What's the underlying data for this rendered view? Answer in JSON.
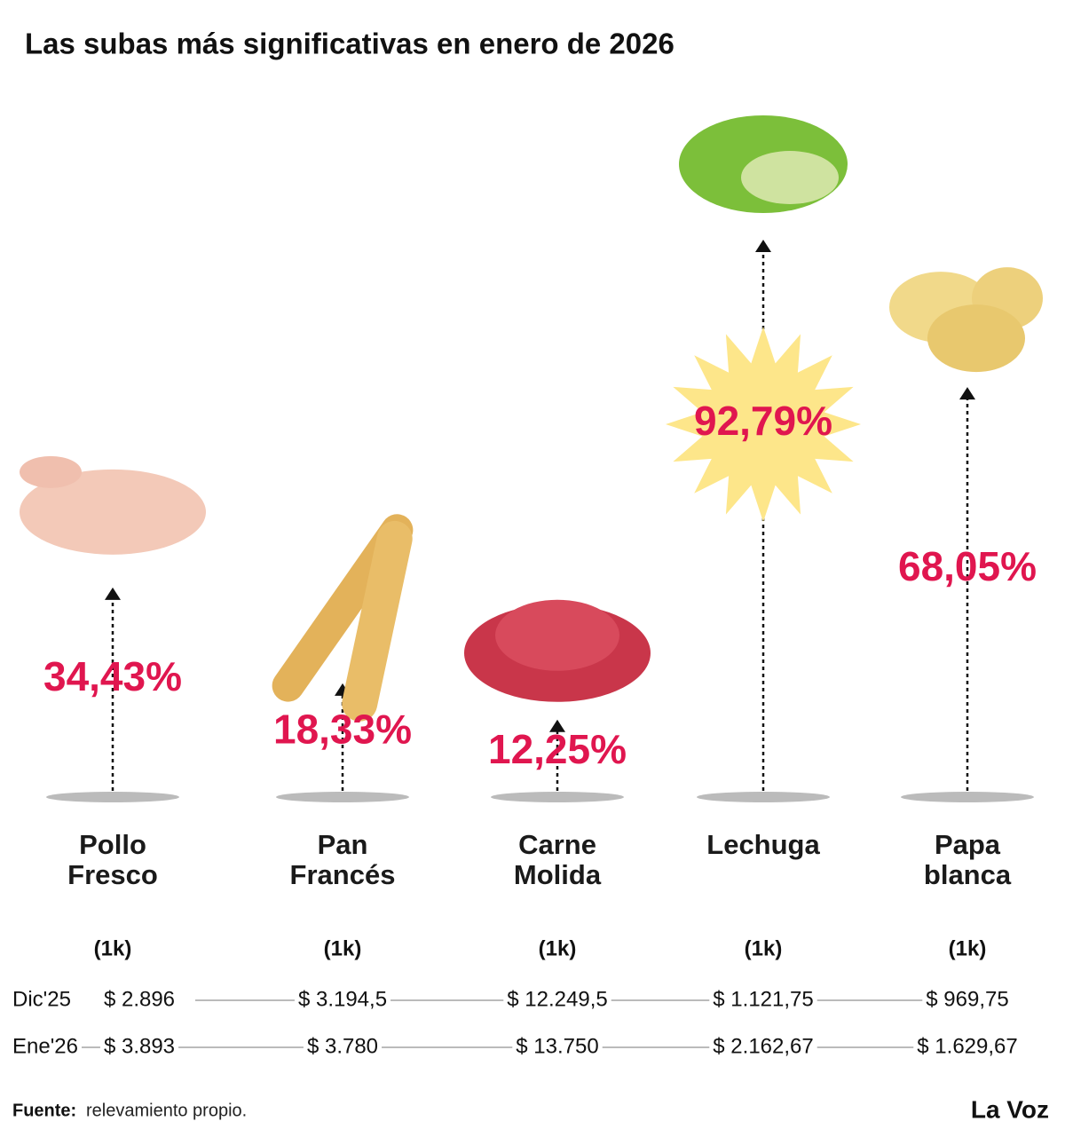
{
  "chart_data": {
    "type": "pictorial-arrow",
    "title": "Las subas más significativas en enero de 2026",
    "categories": [
      "Pollo Fresco",
      "Pan Francés",
      "Carne Molida",
      "Lechuga",
      "Papa blanca"
    ],
    "values": [
      34.43,
      18.33,
      12.25,
      92.79,
      68.05
    ],
    "value_labels": [
      "34,43%",
      "18,33%",
      "12,25%",
      "92,79%",
      "68,05%"
    ],
    "color": "#e0164f",
    "units": [
      "(1k)",
      "(1k)",
      "(1k)",
      "(1k)",
      "(1k)"
    ],
    "prices": [
      {
        "label": "Dic'25",
        "values": [
          "$ 2.896",
          "$ 3.194,5",
          "$ 12.249,5",
          "$ 1.121,75",
          "$ 969,75"
        ]
      },
      {
        "label": "Ene'26",
        "values": [
          "$ 3.893",
          "$ 3.780",
          "$ 13.750",
          "$ 2.162,67",
          "$ 1.629,67"
        ]
      }
    ],
    "source_label": "Fuente:",
    "source": "relevamiento propio.",
    "brand": "La Voz"
  }
}
